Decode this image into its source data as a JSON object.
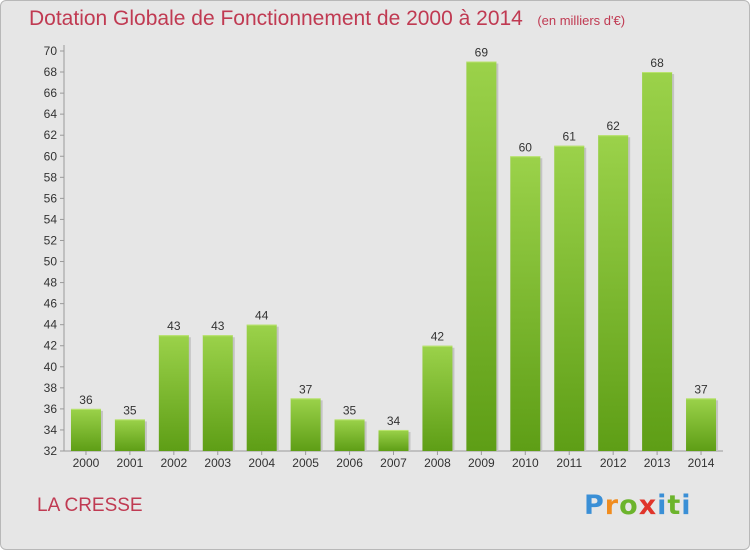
{
  "title": "Dotation Globale de Fonctionnement de 2000 à 2014",
  "unit_note": "(en milliers d'€)",
  "commune": "LA CRESSE",
  "logo": "Proxiti",
  "colors": {
    "title": "#c03a52",
    "bar_light": "#9bd24a",
    "bar_dark": "#5e9e16",
    "background": "#e6e6e6"
  },
  "chart_data": {
    "type": "bar",
    "title": "Dotation Globale de Fonctionnement de 2000 à 2014",
    "xlabel": "",
    "ylabel": "",
    "categories": [
      "2000",
      "2001",
      "2002",
      "2003",
      "2004",
      "2005",
      "2006",
      "2007",
      "2008",
      "2009",
      "2010",
      "2011",
      "2012",
      "2013",
      "2014"
    ],
    "values": [
      36,
      35,
      43,
      43,
      44,
      37,
      35,
      34,
      42,
      69,
      60,
      61,
      62,
      68,
      37
    ],
    "ylim": [
      32,
      70
    ],
    "ytick_step": 2,
    "grid": false
  }
}
